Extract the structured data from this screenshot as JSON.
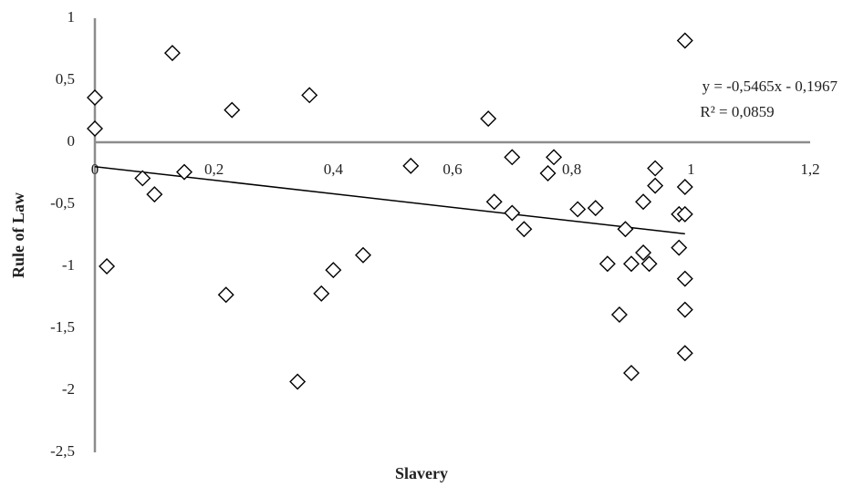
{
  "chart_data": {
    "type": "scatter",
    "x_label": "Slavery",
    "y_label": "Rule of Law",
    "xlim": [
      0,
      1.2
    ],
    "ylim": [
      -2.5,
      1
    ],
    "xticks": [
      0,
      {
        "value": 0.2,
        "label": "0,2"
      },
      {
        "value": 0.4,
        "label": "0,4"
      },
      {
        "value": 0.6,
        "label": "0,6"
      },
      {
        "value": 0.8,
        "label": "0,8"
      },
      1,
      {
        "value": 1.2,
        "label": "1,2"
      }
    ],
    "yticks": [
      {
        "value": -2.5,
        "label": "-2,5"
      },
      -2,
      {
        "value": -1.5,
        "label": "-1,5"
      },
      -1,
      {
        "value": -0.5,
        "label": "-0,5"
      },
      0,
      {
        "value": 0.5,
        "label": "0,5"
      },
      1
    ],
    "grid": false,
    "color": "#000000",
    "x": [
      0.13,
      0.0,
      0.0,
      0.02,
      0.08,
      0.1,
      0.15,
      0.23,
      0.22,
      0.36,
      0.34,
      0.38,
      0.4,
      0.45,
      0.53,
      0.66,
      0.67,
      0.7,
      0.7,
      0.72,
      0.76,
      0.77,
      0.81,
      0.84,
      0.86,
      0.88,
      0.89,
      0.9,
      0.9,
      0.92,
      0.92,
      0.93,
      0.94,
      0.94,
      0.98,
      0.98,
      0.99,
      0.99,
      0.99,
      0.99,
      0.99,
      0.99
    ],
    "values": [
      0.72,
      0.36,
      0.11,
      -1.0,
      -0.29,
      -0.42,
      -0.24,
      0.26,
      -1.23,
      0.38,
      -1.93,
      -1.22,
      -1.03,
      -0.91,
      -0.19,
      0.19,
      -0.48,
      -0.12,
      -0.57,
      -0.7,
      -0.25,
      -0.12,
      -0.54,
      -0.53,
      -0.98,
      -1.39,
      -0.7,
      -0.98,
      -1.86,
      -0.48,
      -0.89,
      -0.98,
      -0.21,
      -0.35,
      -0.58,
      -0.85,
      0.82,
      -0.36,
      -0.58,
      -1.1,
      -1.35,
      -1.7
    ],
    "trendline": {
      "equation": "y = -0,5465x - 0,1967",
      "r2_label": "R² = 0,0859",
      "slope": -0.5465,
      "intercept": -0.1967
    }
  }
}
